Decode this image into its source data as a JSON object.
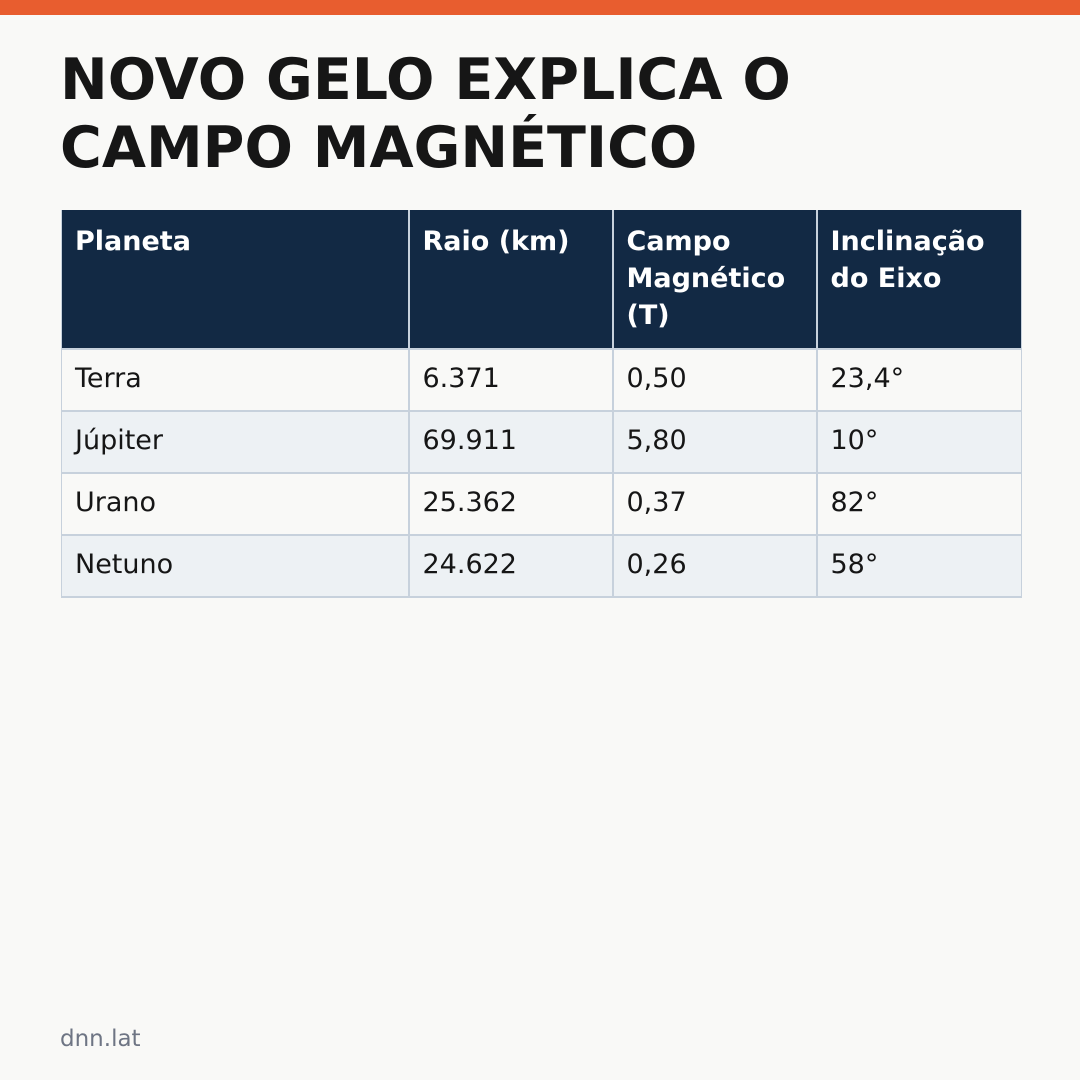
{
  "colors": {
    "accent_bar": "#e85d2f",
    "header_bg": "#122944",
    "page_bg": "#f9f9f7",
    "row_alt_bg": "#edf1f4",
    "grid_line": "#c7d1dc",
    "source_text": "#6e7584"
  },
  "headline": "NOVO GELO EXPLICA O CAMPO MAGNÉTICO",
  "table": {
    "columns": [
      "Planeta",
      "Raio (km)",
      "Campo Magnético (T)",
      "Inclinação do Eixo"
    ],
    "rows": [
      [
        "Terra",
        "6.371",
        "0,50",
        "23,4°"
      ],
      [
        "Júpiter",
        "69.911",
        "5,80",
        "10°"
      ],
      [
        "Urano",
        "25.362",
        "0,37",
        "82°"
      ],
      [
        "Netuno",
        "24.622",
        "0,26",
        "58°"
      ]
    ]
  },
  "source": "dnn.lat"
}
